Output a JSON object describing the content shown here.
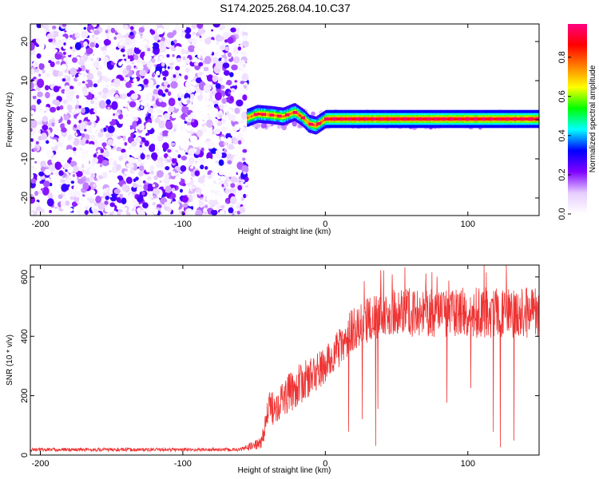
{
  "title": "S174.2025.268.04.10.C37",
  "chart_data": [
    {
      "type": "heatmap",
      "xlabel": "Height of straight line (km)",
      "ylabel": "Frequency (Hz)",
      "xlim": [
        -207,
        150
      ],
      "ylim": [
        -24.5,
        24.5
      ],
      "xticks": [
        -200,
        -100,
        0,
        100
      ],
      "yticks": [
        -20,
        -10,
        0,
        10,
        20
      ],
      "colorbar": {
        "label": "Normalized spectral amplitude",
        "range": [
          0,
          0.97
        ],
        "ticks": [
          0.0,
          0.2,
          0.4,
          0.6,
          0.8
        ],
        "tick_labels": [
          "0.0",
          "0.2",
          "0.4",
          "0.6",
          "0.8"
        ],
        "colormap": [
          "#ffffff",
          "#e6ccff",
          "#8000ff",
          "#0000ff",
          "#00ffff",
          "#00ff00",
          "#ffff00",
          "#ff8000",
          "#ff0000",
          "#ff0080"
        ]
      },
      "features": {
        "noise_region_x": [
          -207,
          -55
        ],
        "ridge_onset_x": -55,
        "ridge_path": [
          {
            "x": -55,
            "y": 0.5
          },
          {
            "x": -48,
            "y": 1.5
          },
          {
            "x": -38,
            "y": 1.2
          },
          {
            "x": -30,
            "y": 0.8
          },
          {
            "x": -22,
            "y": 2.0
          },
          {
            "x": -16,
            "y": 0.5
          },
          {
            "x": -12,
            "y": -1.0
          },
          {
            "x": -7,
            "y": -1.5
          },
          {
            "x": -3,
            "y": -0.5
          },
          {
            "x": 0,
            "y": 0.2
          },
          {
            "x": 150,
            "y": 0.2
          }
        ],
        "peak_amplitude": 0.95
      }
    },
    {
      "type": "line",
      "xlabel": "Height of straight line (km)",
      "ylabel": "SNR (10 * v/v)",
      "xlim": [
        -207,
        150
      ],
      "ylim": [
        0,
        640
      ],
      "xticks": [
        -200,
        -100,
        0,
        100
      ],
      "yticks": [
        0,
        200,
        400,
        600
      ],
      "series": [
        {
          "name": "SNR",
          "color": "#ee3333",
          "envelope": [
            {
              "x": -207,
              "base": 18,
              "spread": 12
            },
            {
              "x": -60,
              "base": 18,
              "spread": 12
            },
            {
              "x": -45,
              "base": 40,
              "spread": 40
            },
            {
              "x": -40,
              "base": 150,
              "spread": 120
            },
            {
              "x": -20,
              "base": 230,
              "spread": 140
            },
            {
              "x": 0,
              "base": 300,
              "spread": 130
            },
            {
              "x": 20,
              "base": 430,
              "spread": 150
            },
            {
              "x": 40,
              "base": 480,
              "spread": 160
            },
            {
              "x": 100,
              "base": 480,
              "spread": 170
            },
            {
              "x": 150,
              "base": 480,
              "spread": 170
            }
          ]
        }
      ]
    }
  ]
}
